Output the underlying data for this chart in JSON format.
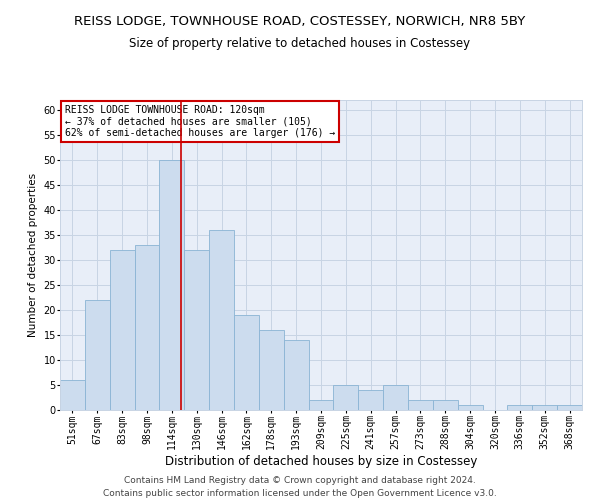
{
  "title": "REISS LODGE, TOWNHOUSE ROAD, COSTESSEY, NORWICH, NR8 5BY",
  "subtitle": "Size of property relative to detached houses in Costessey",
  "xlabel": "Distribution of detached houses by size in Costessey",
  "ylabel": "Number of detached properties",
  "categories": [
    "51sqm",
    "67sqm",
    "83sqm",
    "98sqm",
    "114sqm",
    "130sqm",
    "146sqm",
    "162sqm",
    "178sqm",
    "193sqm",
    "209sqm",
    "225sqm",
    "241sqm",
    "257sqm",
    "273sqm",
    "288sqm",
    "304sqm",
    "320sqm",
    "336sqm",
    "352sqm",
    "368sqm"
  ],
  "values": [
    6,
    22,
    32,
    33,
    50,
    32,
    36,
    19,
    16,
    14,
    2,
    5,
    4,
    5,
    2,
    2,
    1,
    0,
    1,
    1,
    1
  ],
  "bar_color": "#ccdcee",
  "bar_edgecolor": "#8ab4d4",
  "annotation_line1": "REISS LODGE TOWNHOUSE ROAD: 120sqm",
  "annotation_line2": "← 37% of detached houses are smaller (105)",
  "annotation_line3": "62% of semi-detached houses are larger (176) →",
  "annotation_box_color": "#ffffff",
  "annotation_box_edgecolor": "#cc0000",
  "redline_color": "#cc0000",
  "ylim": [
    0,
    62
  ],
  "yticks": [
    0,
    5,
    10,
    15,
    20,
    25,
    30,
    35,
    40,
    45,
    50,
    55,
    60
  ],
  "grid_color": "#c8d4e4",
  "footer1": "Contains HM Land Registry data © Crown copyright and database right 2024.",
  "footer2": "Contains public sector information licensed under the Open Government Licence v3.0.",
  "title_fontsize": 9.5,
  "subtitle_fontsize": 8.5,
  "xlabel_fontsize": 8.5,
  "ylabel_fontsize": 7.5,
  "tick_fontsize": 7,
  "annotation_fontsize": 7,
  "footer_fontsize": 6.5
}
